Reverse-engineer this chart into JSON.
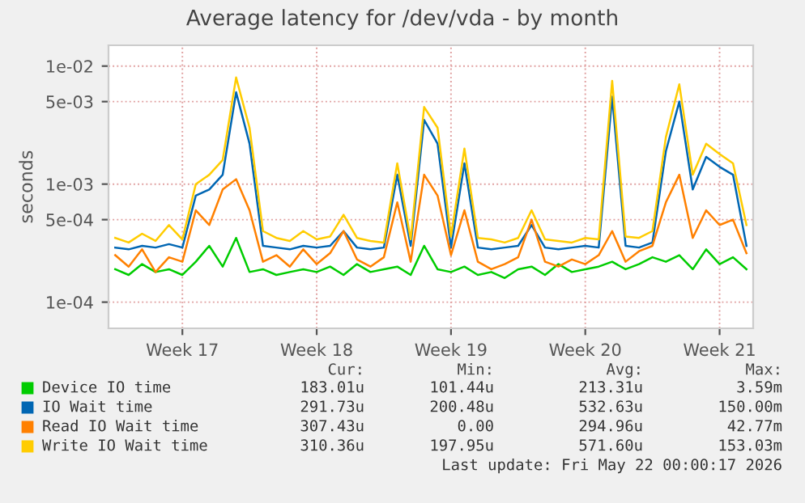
{
  "chart_data": {
    "type": "line",
    "title": "Average latency for /dev/vda - by month",
    "ylabel": "seconds",
    "log": "y",
    "grid": true,
    "legend": "bottom",
    "marker": "none",
    "line_style": "solid",
    "ylim": [
      6e-05,
      0.015
    ],
    "yticks": [
      {
        "value": 0.0001,
        "label": "1e-04"
      },
      {
        "value": 0.0005,
        "label": "5e-04"
      },
      {
        "value": 0.001,
        "label": "1e-03"
      },
      {
        "value": 0.005,
        "label": "5e-03"
      },
      {
        "value": 0.01,
        "label": "1e-02"
      }
    ],
    "categories": [
      null,
      null,
      null,
      null,
      null,
      "Week 17",
      null,
      null,
      null,
      null,
      null,
      null,
      null,
      null,
      null,
      "Week 18",
      null,
      null,
      null,
      null,
      null,
      null,
      null,
      null,
      null,
      "Week 19",
      null,
      null,
      null,
      null,
      null,
      null,
      null,
      null,
      null,
      "Week 20",
      null,
      null,
      null,
      null,
      null,
      null,
      null,
      null,
      null,
      "Week 21",
      null,
      null
    ],
    "series": [
      {
        "name": "Device IO time",
        "color": "#00cc00",
        "values": [
          0.00019,
          0.00017,
          0.00021,
          0.00018,
          0.00019,
          0.00017,
          0.00022,
          0.0003,
          0.0002,
          0.00035,
          0.00018,
          0.00019,
          0.00017,
          0.00018,
          0.00019,
          0.00018,
          0.0002,
          0.00017,
          0.00021,
          0.00018,
          0.00019,
          0.0002,
          0.00017,
          0.0003,
          0.00019,
          0.00018,
          0.0002,
          0.00017,
          0.00018,
          0.00016,
          0.00019,
          0.0002,
          0.00017,
          0.00021,
          0.00018,
          0.00019,
          0.0002,
          0.00022,
          0.00019,
          0.00021,
          0.00024,
          0.00022,
          0.00025,
          0.00019,
          0.00028,
          0.00021,
          0.00024,
          0.00019
        ]
      },
      {
        "name": "IO Wait time",
        "color": "#0066b3",
        "values": [
          0.00029,
          0.00028,
          0.0003,
          0.00029,
          0.00031,
          0.00029,
          0.0008,
          0.0009,
          0.0012,
          0.006,
          0.0022,
          0.0003,
          0.00029,
          0.00028,
          0.0003,
          0.00029,
          0.0003,
          0.0004,
          0.00029,
          0.00028,
          0.00029,
          0.0012,
          0.0003,
          0.0035,
          0.0022,
          0.00029,
          0.0015,
          0.00029,
          0.00028,
          0.00029,
          0.0003,
          0.00045,
          0.00029,
          0.00028,
          0.00029,
          0.0003,
          0.00029,
          0.0055,
          0.0003,
          0.00029,
          0.00032,
          0.0019,
          0.005,
          0.0009,
          0.0017,
          0.0014,
          0.0012,
          0.0003
        ]
      },
      {
        "name": "Read IO Wait time",
        "color": "#ff8000",
        "values": [
          0.00025,
          0.0002,
          0.00028,
          0.00018,
          0.00024,
          0.00022,
          0.0006,
          0.00045,
          0.0009,
          0.0011,
          0.0006,
          0.00022,
          0.00025,
          0.0002,
          0.00028,
          0.00021,
          0.00026,
          0.0004,
          0.00023,
          0.0002,
          0.00024,
          0.0007,
          0.00022,
          0.0012,
          0.0008,
          0.00025,
          0.0006,
          0.00022,
          0.00019,
          0.00021,
          0.00024,
          0.0005,
          0.00022,
          0.0002,
          0.00023,
          0.00021,
          0.00025,
          0.0004,
          0.00022,
          0.00027,
          0.0003,
          0.0007,
          0.0012,
          0.00035,
          0.0006,
          0.00045,
          0.0005,
          0.00026
        ]
      },
      {
        "name": "Write IO Wait time",
        "color": "#ffcc00",
        "values": [
          0.00035,
          0.00032,
          0.00038,
          0.00033,
          0.00045,
          0.00034,
          0.001,
          0.0012,
          0.0016,
          0.008,
          0.003,
          0.0004,
          0.00035,
          0.00033,
          0.0004,
          0.00034,
          0.00036,
          0.00055,
          0.00035,
          0.00033,
          0.00032,
          0.0015,
          0.00034,
          0.0045,
          0.003,
          0.00036,
          0.002,
          0.00035,
          0.00034,
          0.00032,
          0.00035,
          0.0006,
          0.00034,
          0.00033,
          0.00032,
          0.00035,
          0.00034,
          0.0075,
          0.00036,
          0.00035,
          0.0004,
          0.0025,
          0.007,
          0.0012,
          0.0022,
          0.0018,
          0.0015,
          0.00045
        ]
      }
    ],
    "annotations": [
      "Cur:",
      "Min:",
      "Avg:",
      "Max:",
      "183.01u",
      "101.44u",
      "213.31u",
      "3.59m",
      "291.73u",
      "200.48u",
      "532.63u",
      "150.00m",
      "307.43u",
      "0.00",
      "294.96u",
      "42.77m",
      "310.36u",
      "197.95u",
      "571.60u",
      "153.03m",
      "Last update: Fri May 22 00:00:17 2026"
    ]
  }
}
